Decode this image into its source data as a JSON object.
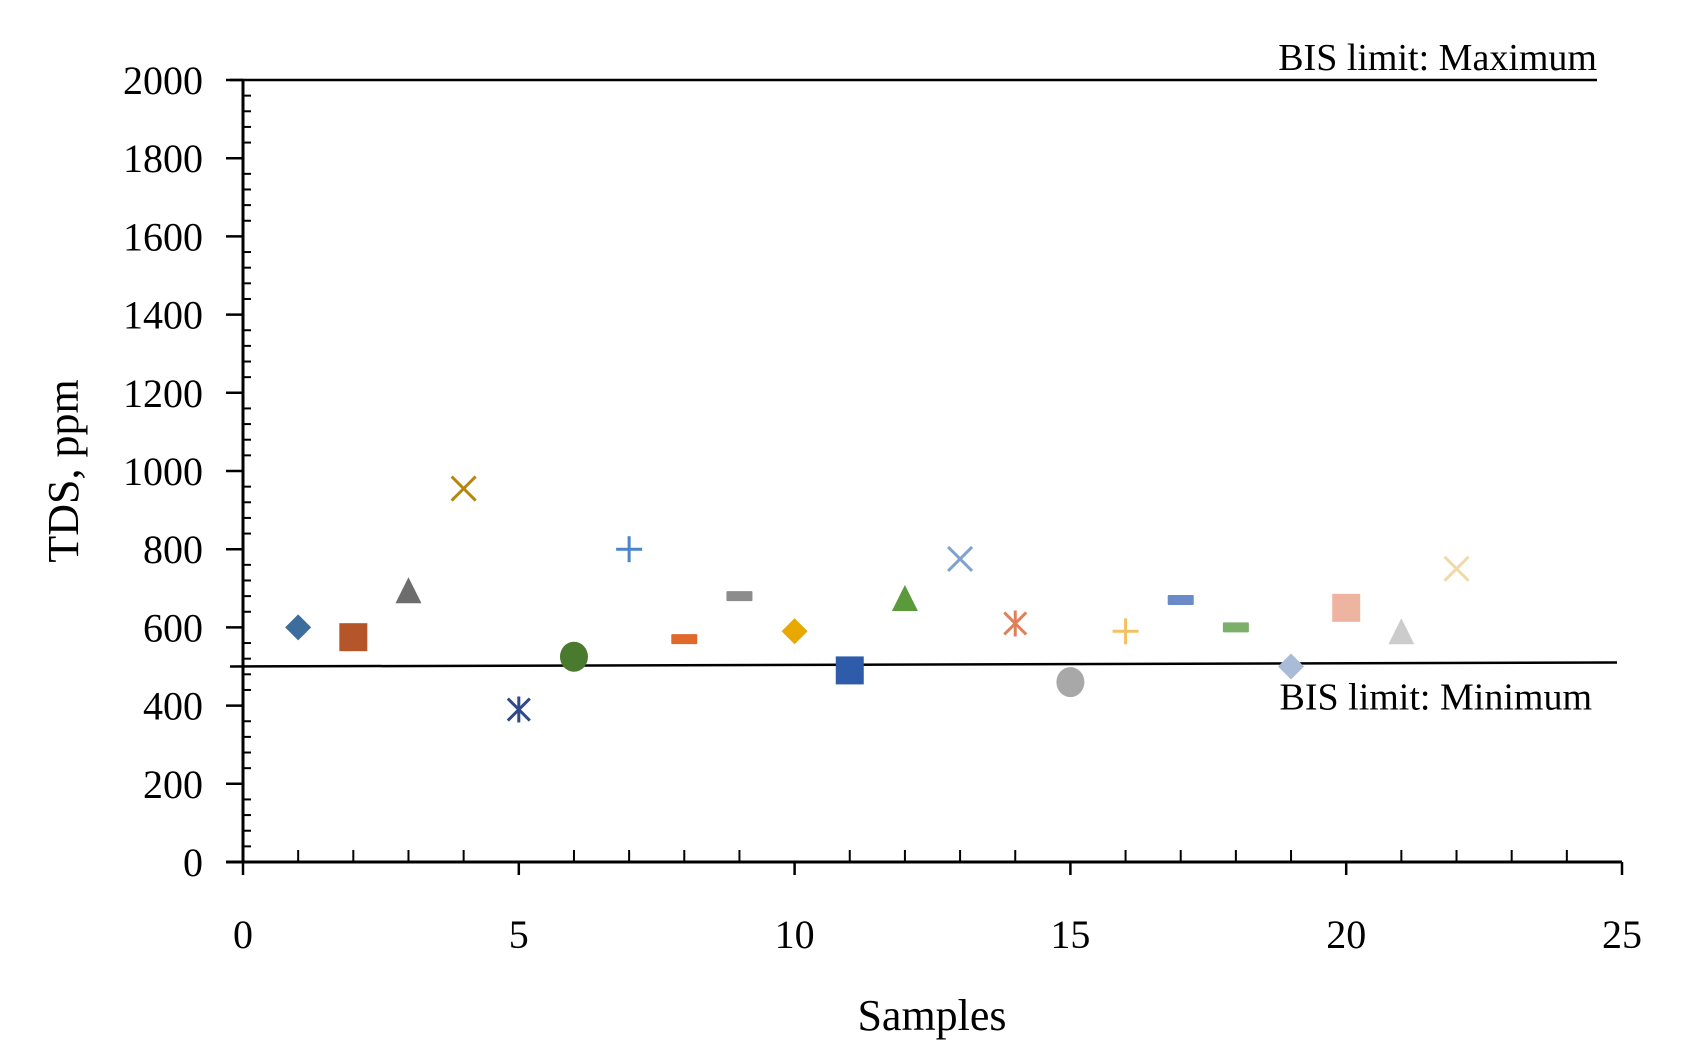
{
  "chart_data": {
    "type": "scatter",
    "title": "",
    "xlabel": "Samples",
    "ylabel": "TDS, ppm",
    "xlim": [
      0,
      25
    ],
    "ylim": [
      0,
      2000
    ],
    "xticks": [
      0,
      5,
      10,
      15,
      20,
      25
    ],
    "yticks": [
      0,
      200,
      400,
      600,
      800,
      1000,
      1200,
      1400,
      1600,
      1800,
      2000
    ],
    "grid": false,
    "legend": "none",
    "reference_lines": [
      {
        "label": "BIS limit: Maximum",
        "y": 2000
      },
      {
        "label": "BIS limit: Minimum",
        "y": 500
      }
    ],
    "points": [
      {
        "x": 1,
        "y": 600,
        "marker": "diamond",
        "color": "#3c6d9c"
      },
      {
        "x": 2,
        "y": 575,
        "marker": "square",
        "color": "#b5562a"
      },
      {
        "x": 3,
        "y": 690,
        "marker": "triangle",
        "color": "#6d6d6d"
      },
      {
        "x": 4,
        "y": 955,
        "marker": "x",
        "color": "#b8860b"
      },
      {
        "x": 5,
        "y": 390,
        "marker": "asterisk",
        "color": "#2f4a8a"
      },
      {
        "x": 6,
        "y": 525,
        "marker": "circle",
        "color": "#4a7a2e"
      },
      {
        "x": 7,
        "y": 800,
        "marker": "plus",
        "color": "#4a86c8"
      },
      {
        "x": 8,
        "y": 570,
        "marker": "dash",
        "color": "#e06a2c"
      },
      {
        "x": 9,
        "y": 680,
        "marker": "dash",
        "color": "#8c8c8c"
      },
      {
        "x": 10,
        "y": 590,
        "marker": "diamond",
        "color": "#e8a800"
      },
      {
        "x": 11,
        "y": 490,
        "marker": "square",
        "color": "#2e5caa"
      },
      {
        "x": 12,
        "y": 670,
        "marker": "triangle",
        "color": "#5a9a3a"
      },
      {
        "x": 13,
        "y": 775,
        "marker": "x",
        "color": "#7fa3cc"
      },
      {
        "x": 14,
        "y": 610,
        "marker": "asterisk",
        "color": "#e0805a"
      },
      {
        "x": 15,
        "y": 460,
        "marker": "circle",
        "color": "#a8a8a8"
      },
      {
        "x": 16,
        "y": 590,
        "marker": "plus",
        "color": "#f5c060"
      },
      {
        "x": 17,
        "y": 670,
        "marker": "dash",
        "color": "#6a8ac8"
      },
      {
        "x": 18,
        "y": 600,
        "marker": "dash",
        "color": "#7ab06a"
      },
      {
        "x": 19,
        "y": 500,
        "marker": "diamond",
        "color": "#a8bcd8"
      },
      {
        "x": 20,
        "y": 650,
        "marker": "square",
        "color": "#efb4a0"
      },
      {
        "x": 21,
        "y": 585,
        "marker": "triangle",
        "color": "#cccccc"
      },
      {
        "x": 22,
        "y": 750,
        "marker": "x",
        "color": "#f0d8a8"
      }
    ]
  }
}
